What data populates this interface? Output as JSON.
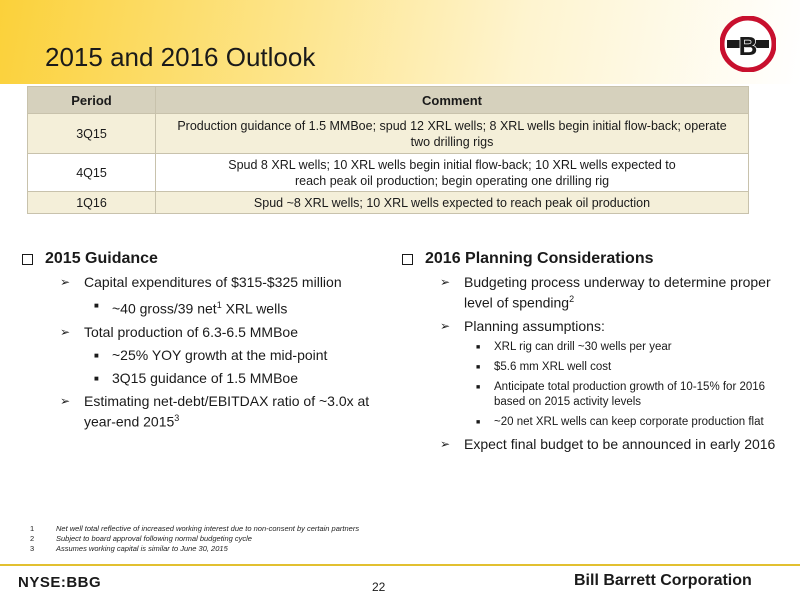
{
  "slide": {
    "title": "2015 and 2016 Outlook",
    "logo_letter": "B"
  },
  "table": {
    "headers": [
      "Period",
      "Comment"
    ],
    "rows": [
      {
        "period": "3Q15",
        "comment_line1": "Production guidance of 1.5 MMBoe; spud 12 XRL wells; 8 XRL wells begin initial flow-back; operate",
        "comment_line2": "two drilling rigs"
      },
      {
        "period": "4Q15",
        "comment_line1": "Spud 8 XRL wells; 10 XRL wells begin initial flow-back; 10 XRL wells expected to",
        "comment_line2": "reach peak oil production; begin operating one drilling rig"
      },
      {
        "period": "1Q16",
        "comment_line1": "Spud ~8 XRL wells; 10 XRL wells expected to reach peak oil production",
        "comment_line2": ""
      }
    ]
  },
  "left": {
    "heading": "2015 Guidance",
    "b1": "Capital expenditures of $315-$325 million",
    "b1a": "~40 gross/39 net",
    "b1a_sup": "1",
    "b1a_end": " XRL wells",
    "b2": "Total production of 6.3-6.5 MMBoe",
    "b2a": "~25% YOY growth at the mid-point",
    "b2b": "3Q15 guidance of 1.5 MMBoe",
    "b3": "Estimating net-debt/EBITDAX ratio of ~3.0x at year-end 2015",
    "b3_sup": "3"
  },
  "right": {
    "heading": "2016 Planning Considerations",
    "b1": "Budgeting process underway to determine proper level of spending",
    "b1_sup": "2",
    "b2": "Planning assumptions:",
    "b2a": "XRL rig can drill ~30 wells per year",
    "b2b": "$5.6 mm XRL well cost",
    "b2c": "Anticipate total production growth of 10-15% for 2016 based on 2015 activity levels",
    "b2d": "~20 net XRL wells can keep corporate production flat",
    "b3": "Expect final budget to be announced in early 2016"
  },
  "footnotes": [
    {
      "num": "1",
      "text": "Net well total reflective of increased working interest due to non-consent by certain partners"
    },
    {
      "num": "2",
      "text": "Subject to board approval following normal budgeting cycle"
    },
    {
      "num": "3",
      "text": "Assumes working capital is similar to June 30, 2015"
    }
  ],
  "footer": {
    "ticker": "NYSE:BBG",
    "page": "22",
    "company": "Bill Barrett Corporation"
  },
  "colors": {
    "header_gold": "#fbd13a",
    "logo_red": "#c8102e",
    "table_header": "#d6d1bd",
    "table_alt": "#f4efd9"
  },
  "icons": {
    "bullet_l0": "checkbox-square-icon",
    "bullet_l1": "arrowhead-icon",
    "bullet_l2": "small-square-icon"
  }
}
